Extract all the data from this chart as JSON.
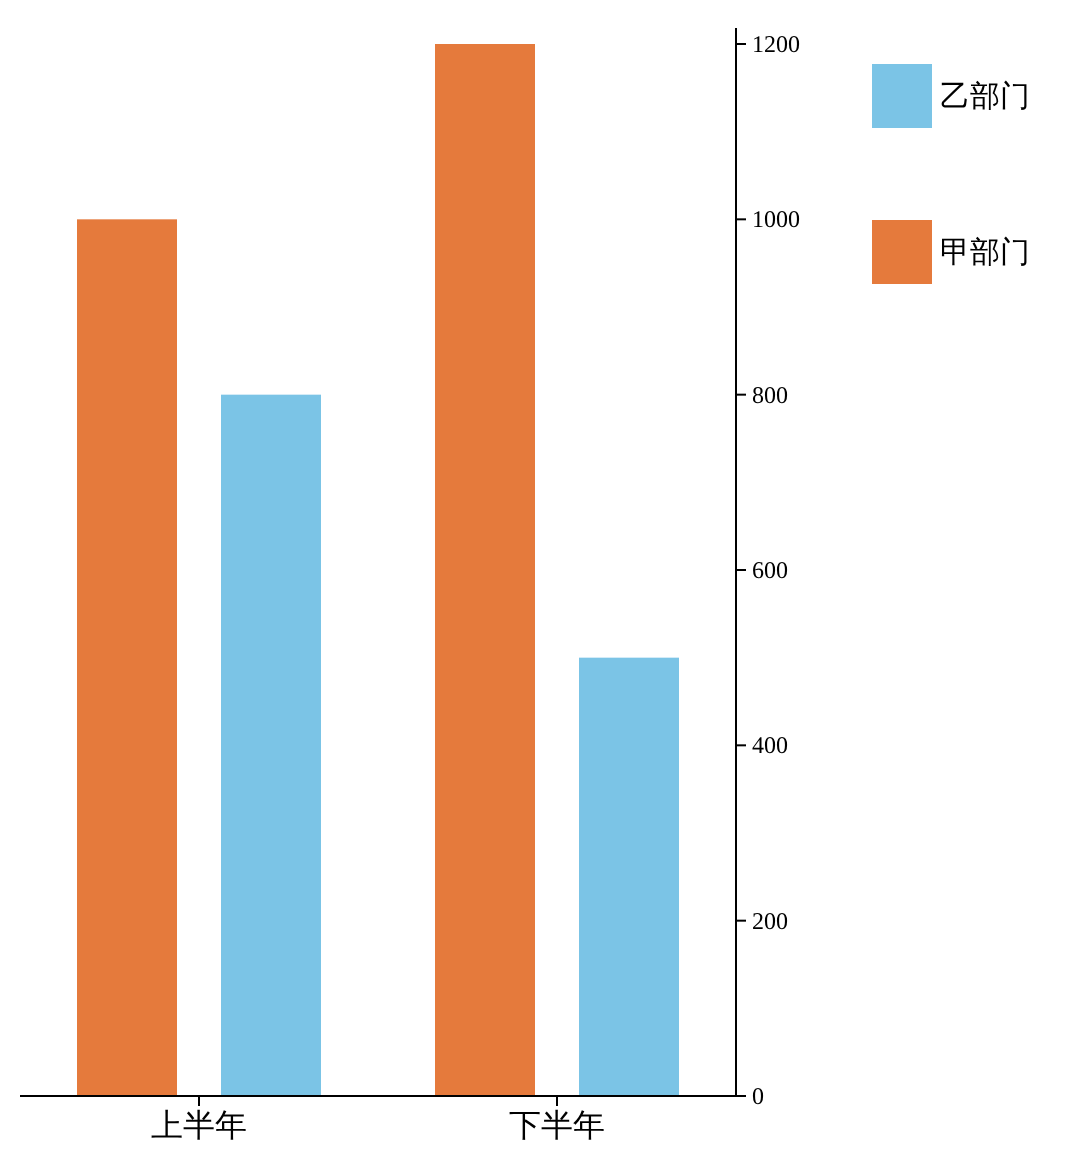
{
  "chart_data": {
    "type": "bar",
    "categories": [
      "上半年",
      "下半年"
    ],
    "series": [
      {
        "name": "甲部门",
        "color": "#e57a3c",
        "values": [
          1000,
          1200
        ]
      },
      {
        "name": "乙部门",
        "color": "#7bc4e6",
        "values": [
          800,
          500
        ]
      }
    ],
    "ylim": [
      0,
      1200
    ],
    "yticks": [
      0,
      200,
      400,
      600,
      800,
      1000,
      1200
    ],
    "legend": "top right",
    "grid": false
  }
}
